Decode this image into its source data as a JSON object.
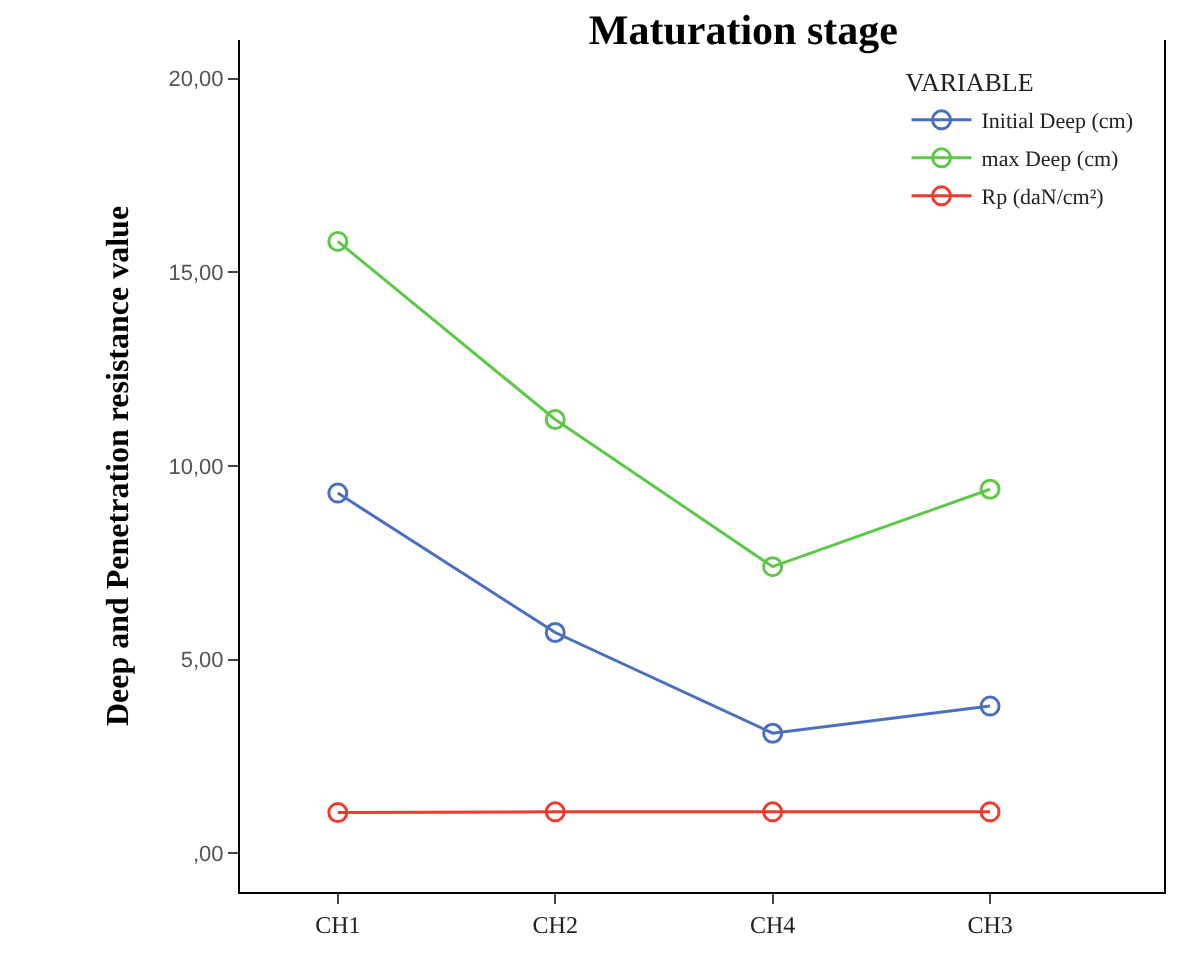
{
  "chart_data": {
    "type": "line",
    "title": "Maturation stage",
    "ylabel": "Deep and Penetration resistance value",
    "legend_title": "VARIABLE",
    "categories": [
      "CH1",
      "CH2",
      "CH4",
      "CH3"
    ],
    "series": [
      {
        "name": "Initial Deep (cm)",
        "color": "#4a6fc0",
        "values": [
          9.3,
          5.7,
          3.1,
          3.8
        ]
      },
      {
        "name": "max Deep (cm)",
        "color": "#5ec84a",
        "values": [
          15.8,
          11.2,
          7.4,
          9.4
        ]
      },
      {
        "name": "Rp (daN/cm²)",
        "color": "#f03a2e",
        "values": [
          1.05,
          1.07,
          1.07,
          1.07
        ]
      }
    ],
    "ylim": [
      -1,
      21
    ],
    "yticks": [
      {
        "value": 0,
        "label": ",00"
      },
      {
        "value": 5,
        "label": "5,00"
      },
      {
        "value": 10,
        "label": "10,00"
      },
      {
        "value": 15,
        "label": "15,00"
      },
      {
        "value": 20,
        "label": "20,00"
      }
    ],
    "marker": "circle",
    "line_style": "solid",
    "legend": "top right"
  }
}
